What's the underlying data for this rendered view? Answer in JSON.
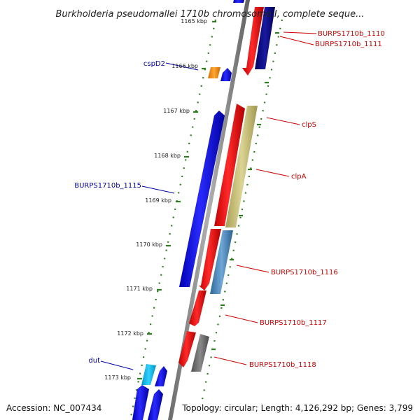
{
  "title": "Burkholderia pseudomallei 1710b chromosome I, complete seque...",
  "footer": {
    "accession": "Accession: NC_007434",
    "topology": "Topology: circular; Length: 4,126,292 bp; Genes: 3,799"
  },
  "ticks": [
    "1165 kbp",
    "1166 kbp",
    "1167 kbp",
    "1168 kbp",
    "1169 kbp",
    "1170 kbp",
    "1171 kbp",
    "1172 kbp",
    "1173 kbp"
  ],
  "genes": {
    "burps_1110": "BURPS1710b_1110",
    "burps_1111": "BURPS1710b_1111",
    "cspd2": "cspD2",
    "clps": "clpS",
    "clpa": "clpA",
    "burps_1115": "BURPS1710b_1115",
    "burps_1116": "BURPS1710b_1116",
    "burps_1117": "BURPS1710b_1117",
    "burps_1118": "BURPS1710b_1118",
    "dut": "dut"
  },
  "colors": {
    "backbone": "#808080",
    "ruler": "#2e7d1f",
    "forward": "#0000ee",
    "reverse": "#ee0000",
    "navy": "#000080",
    "khaki": "#c8bf78",
    "steelblue": "#4682b4",
    "gray": "#6e6e6e",
    "orange": "#ff8c00",
    "cyan": "#00bfff",
    "label_red": "#cc0000",
    "label_blue": "#0000aa"
  }
}
